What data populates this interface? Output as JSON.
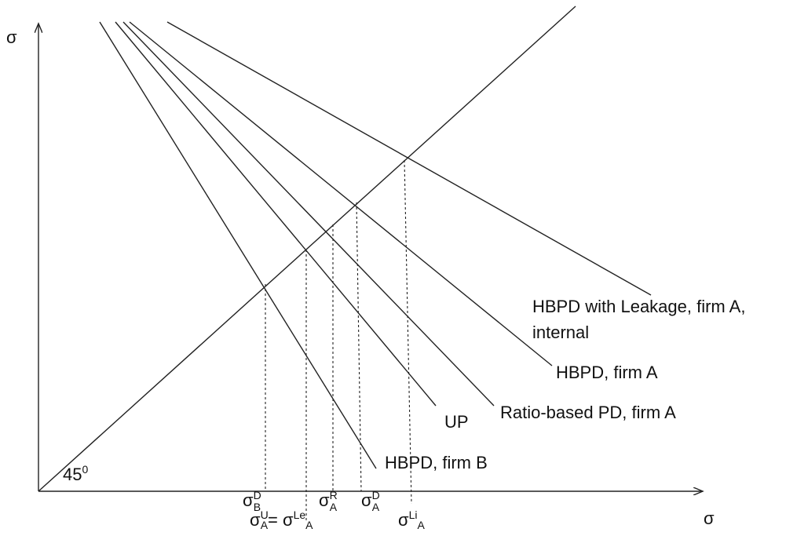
{
  "axes": {
    "y_label": "σ",
    "x_label": "σ",
    "angle_label": "45",
    "angle_sup": "0"
  },
  "curves": {
    "hbpd_leakage_line1": "HBPD with Leakage, firm A,",
    "hbpd_leakage_line2": "internal",
    "hbpd_a": "HBPD, firm A",
    "ratio_pd_a": "Ratio-based PD, firm A",
    "up": "UP",
    "hbpd_b": "HBPD, firm B"
  },
  "ticks": {
    "sigma": "σ",
    "db_sup": "D",
    "db_sub": "B",
    "ua_sup": "U",
    "ua_sub": "A",
    "equals": "= ",
    "lea_sup": "Le",
    "lea_sub": "A",
    "ra_sup": "R",
    "ra_sub": "A",
    "da_sup": "D",
    "da_sub": "A",
    "lia_sup": "Li",
    "lia_sub": "A"
  }
}
